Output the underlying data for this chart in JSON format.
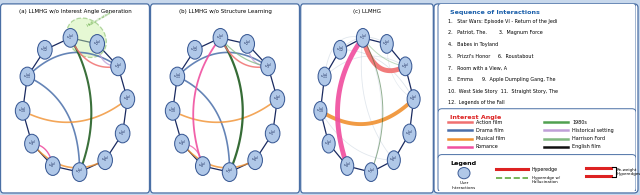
{
  "fig_width": 6.4,
  "fig_height": 1.95,
  "bg_color": "#c8d8ec",
  "node_fill": "#b0c8e8",
  "node_edge": "#3a5a95",
  "dark_edge": "#1a2a60",
  "panel_titles": [
    "(a) LLMHG w/o Interest Angle Generation",
    "(b) LLMHG w/o Structure Learning",
    "(c) LLMHG"
  ],
  "sequence_title": "Sequence of Interactions",
  "sequence_lines": [
    "1.   Star Wars: Episode VI - Return of the Jedi",
    "2.   Patriot, The.        3.  Magnum Force",
    "4.   Babes in Toyland",
    "5.   Prizzi's Honor     6.  Roustabout",
    "7.   Room with a View, A",
    "8.   Emma      9.  Apple Dumpling Gang, The",
    "10.  West Side Story  11.  Straight Story, The",
    "12.  Legends of the Fall"
  ],
  "interest_title": "Interest Angle",
  "interest_rows": [
    [
      "Action film",
      "#f07070",
      "1980s",
      "#50a050"
    ],
    [
      "Drama film",
      "#4a6faa",
      "Historical setting",
      "#c0a0d8"
    ],
    [
      "Musical film",
      "#f09030",
      "Harrison Ford",
      "#80b880"
    ],
    [
      "Romance",
      "#f050a0",
      "English film",
      "#111111"
    ]
  ],
  "legend_title": "Legend",
  "c_action": "#f07070",
  "c_drama": "#4a6faa",
  "c_musical": "#f09030",
  "c_romance": "#f050a0",
  "c_green_dark": "#256025",
  "c_purple": "#c0a0d8",
  "c_green_light": "#80b880",
  "c_hyperedge": "#dd2222",
  "c_halluc_green": "#60a840",
  "c_halluc_fill": "#c8f0a0"
}
